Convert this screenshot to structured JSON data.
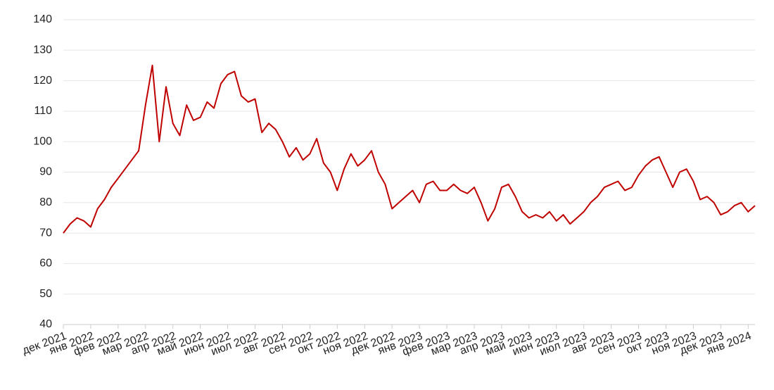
{
  "chart_data": {
    "type": "line",
    "categories": [
      "дек 2021",
      null,
      null,
      null,
      "янв 2022",
      null,
      null,
      null,
      "фев 2022",
      null,
      null,
      null,
      "мар 2022",
      null,
      null,
      null,
      "апр 2022",
      null,
      null,
      null,
      "май 2022",
      null,
      null,
      null,
      "июн 2022",
      null,
      null,
      null,
      "июл 2022",
      null,
      null,
      null,
      "авг 2022",
      null,
      null,
      null,
      "сен 2022",
      null,
      null,
      null,
      "окт 2022",
      null,
      null,
      null,
      "ноя 2022",
      null,
      null,
      null,
      "дек 2022",
      null,
      null,
      null,
      "янв 2023",
      null,
      null,
      null,
      "фев 2023",
      null,
      null,
      null,
      "мар 2023",
      null,
      null,
      null,
      "апр 2023",
      null,
      null,
      null,
      "май 2023",
      null,
      null,
      null,
      "июн 2023",
      null,
      null,
      null,
      "июл 2023",
      null,
      null,
      null,
      "авг 2023",
      null,
      null,
      null,
      "сен 2023",
      null,
      null,
      null,
      "окт 2023",
      null,
      null,
      null,
      "ноя 2023",
      null,
      null,
      null,
      "дек 2023",
      null,
      null,
      null,
      "янв 2024",
      null
    ],
    "values": [
      70,
      73,
      75,
      74,
      72,
      78,
      81,
      85,
      88,
      91,
      94,
      97,
      112,
      125,
      100,
      118,
      106,
      102,
      112,
      107,
      108,
      113,
      111,
      119,
      122,
      123,
      115,
      113,
      114,
      103,
      106,
      104,
      100,
      95,
      98,
      94,
      96,
      101,
      93,
      90,
      84,
      91,
      96,
      92,
      94,
      97,
      90,
      86,
      78,
      80,
      82,
      84,
      80,
      86,
      87,
      84,
      84,
      86,
      84,
      83,
      85,
      80,
      74,
      78,
      85,
      86,
      82,
      77,
      75,
      76,
      75,
      77,
      74,
      76,
      73,
      75,
      77,
      80,
      82,
      85,
      86,
      87,
      84,
      85,
      89,
      92,
      94,
      95,
      90,
      85,
      90,
      91,
      87,
      81,
      82,
      80,
      76,
      77,
      79,
      80,
      77,
      79
    ],
    "color": "#c00000",
    "ylim": [
      40,
      140
    ],
    "yticks": [
      40,
      50,
      60,
      70,
      80,
      90,
      100,
      110,
      120,
      130,
      140
    ],
    "grid": true
  }
}
